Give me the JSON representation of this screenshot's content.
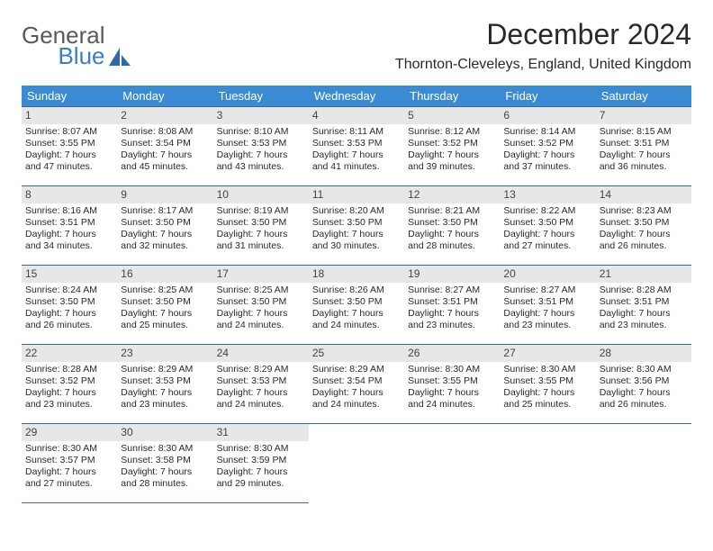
{
  "logo": {
    "line1": "General",
    "line2": "Blue"
  },
  "title": "December 2024",
  "location": "Thornton-Cleveleys, England, United Kingdom",
  "weekdays": [
    "Sunday",
    "Monday",
    "Tuesday",
    "Wednesday",
    "Thursday",
    "Friday",
    "Saturday"
  ],
  "colors": {
    "header_bg": "#3b8bd4",
    "header_text": "#ffffff",
    "cell_border": "#3b6b95",
    "daynum_bg": "#e7e7e7",
    "logo_gray": "#5a5a5a",
    "logo_blue": "#3a7fc4"
  },
  "days": [
    {
      "n": "1",
      "sr": "Sunrise: 8:07 AM",
      "ss": "Sunset: 3:55 PM",
      "dl1": "Daylight: 7 hours",
      "dl2": "and 47 minutes."
    },
    {
      "n": "2",
      "sr": "Sunrise: 8:08 AM",
      "ss": "Sunset: 3:54 PM",
      "dl1": "Daylight: 7 hours",
      "dl2": "and 45 minutes."
    },
    {
      "n": "3",
      "sr": "Sunrise: 8:10 AM",
      "ss": "Sunset: 3:53 PM",
      "dl1": "Daylight: 7 hours",
      "dl2": "and 43 minutes."
    },
    {
      "n": "4",
      "sr": "Sunrise: 8:11 AM",
      "ss": "Sunset: 3:53 PM",
      "dl1": "Daylight: 7 hours",
      "dl2": "and 41 minutes."
    },
    {
      "n": "5",
      "sr": "Sunrise: 8:12 AM",
      "ss": "Sunset: 3:52 PM",
      "dl1": "Daylight: 7 hours",
      "dl2": "and 39 minutes."
    },
    {
      "n": "6",
      "sr": "Sunrise: 8:14 AM",
      "ss": "Sunset: 3:52 PM",
      "dl1": "Daylight: 7 hours",
      "dl2": "and 37 minutes."
    },
    {
      "n": "7",
      "sr": "Sunrise: 8:15 AM",
      "ss": "Sunset: 3:51 PM",
      "dl1": "Daylight: 7 hours",
      "dl2": "and 36 minutes."
    },
    {
      "n": "8",
      "sr": "Sunrise: 8:16 AM",
      "ss": "Sunset: 3:51 PM",
      "dl1": "Daylight: 7 hours",
      "dl2": "and 34 minutes."
    },
    {
      "n": "9",
      "sr": "Sunrise: 8:17 AM",
      "ss": "Sunset: 3:50 PM",
      "dl1": "Daylight: 7 hours",
      "dl2": "and 32 minutes."
    },
    {
      "n": "10",
      "sr": "Sunrise: 8:19 AM",
      "ss": "Sunset: 3:50 PM",
      "dl1": "Daylight: 7 hours",
      "dl2": "and 31 minutes."
    },
    {
      "n": "11",
      "sr": "Sunrise: 8:20 AM",
      "ss": "Sunset: 3:50 PM",
      "dl1": "Daylight: 7 hours",
      "dl2": "and 30 minutes."
    },
    {
      "n": "12",
      "sr": "Sunrise: 8:21 AM",
      "ss": "Sunset: 3:50 PM",
      "dl1": "Daylight: 7 hours",
      "dl2": "and 28 minutes."
    },
    {
      "n": "13",
      "sr": "Sunrise: 8:22 AM",
      "ss": "Sunset: 3:50 PM",
      "dl1": "Daylight: 7 hours",
      "dl2": "and 27 minutes."
    },
    {
      "n": "14",
      "sr": "Sunrise: 8:23 AM",
      "ss": "Sunset: 3:50 PM",
      "dl1": "Daylight: 7 hours",
      "dl2": "and 26 minutes."
    },
    {
      "n": "15",
      "sr": "Sunrise: 8:24 AM",
      "ss": "Sunset: 3:50 PM",
      "dl1": "Daylight: 7 hours",
      "dl2": "and 26 minutes."
    },
    {
      "n": "16",
      "sr": "Sunrise: 8:25 AM",
      "ss": "Sunset: 3:50 PM",
      "dl1": "Daylight: 7 hours",
      "dl2": "and 25 minutes."
    },
    {
      "n": "17",
      "sr": "Sunrise: 8:25 AM",
      "ss": "Sunset: 3:50 PM",
      "dl1": "Daylight: 7 hours",
      "dl2": "and 24 minutes."
    },
    {
      "n": "18",
      "sr": "Sunrise: 8:26 AM",
      "ss": "Sunset: 3:50 PM",
      "dl1": "Daylight: 7 hours",
      "dl2": "and 24 minutes."
    },
    {
      "n": "19",
      "sr": "Sunrise: 8:27 AM",
      "ss": "Sunset: 3:51 PM",
      "dl1": "Daylight: 7 hours",
      "dl2": "and 23 minutes."
    },
    {
      "n": "20",
      "sr": "Sunrise: 8:27 AM",
      "ss": "Sunset: 3:51 PM",
      "dl1": "Daylight: 7 hours",
      "dl2": "and 23 minutes."
    },
    {
      "n": "21",
      "sr": "Sunrise: 8:28 AM",
      "ss": "Sunset: 3:51 PM",
      "dl1": "Daylight: 7 hours",
      "dl2": "and 23 minutes."
    },
    {
      "n": "22",
      "sr": "Sunrise: 8:28 AM",
      "ss": "Sunset: 3:52 PM",
      "dl1": "Daylight: 7 hours",
      "dl2": "and 23 minutes."
    },
    {
      "n": "23",
      "sr": "Sunrise: 8:29 AM",
      "ss": "Sunset: 3:53 PM",
      "dl1": "Daylight: 7 hours",
      "dl2": "and 23 minutes."
    },
    {
      "n": "24",
      "sr": "Sunrise: 8:29 AM",
      "ss": "Sunset: 3:53 PM",
      "dl1": "Daylight: 7 hours",
      "dl2": "and 24 minutes."
    },
    {
      "n": "25",
      "sr": "Sunrise: 8:29 AM",
      "ss": "Sunset: 3:54 PM",
      "dl1": "Daylight: 7 hours",
      "dl2": "and 24 minutes."
    },
    {
      "n": "26",
      "sr": "Sunrise: 8:30 AM",
      "ss": "Sunset: 3:55 PM",
      "dl1": "Daylight: 7 hours",
      "dl2": "and 24 minutes."
    },
    {
      "n": "27",
      "sr": "Sunrise: 8:30 AM",
      "ss": "Sunset: 3:55 PM",
      "dl1": "Daylight: 7 hours",
      "dl2": "and 25 minutes."
    },
    {
      "n": "28",
      "sr": "Sunrise: 8:30 AM",
      "ss": "Sunset: 3:56 PM",
      "dl1": "Daylight: 7 hours",
      "dl2": "and 26 minutes."
    },
    {
      "n": "29",
      "sr": "Sunrise: 8:30 AM",
      "ss": "Sunset: 3:57 PM",
      "dl1": "Daylight: 7 hours",
      "dl2": "and 27 minutes."
    },
    {
      "n": "30",
      "sr": "Sunrise: 8:30 AM",
      "ss": "Sunset: 3:58 PM",
      "dl1": "Daylight: 7 hours",
      "dl2": "and 28 minutes."
    },
    {
      "n": "31",
      "sr": "Sunrise: 8:30 AM",
      "ss": "Sunset: 3:59 PM",
      "dl1": "Daylight: 7 hours",
      "dl2": "and 29 minutes."
    }
  ]
}
